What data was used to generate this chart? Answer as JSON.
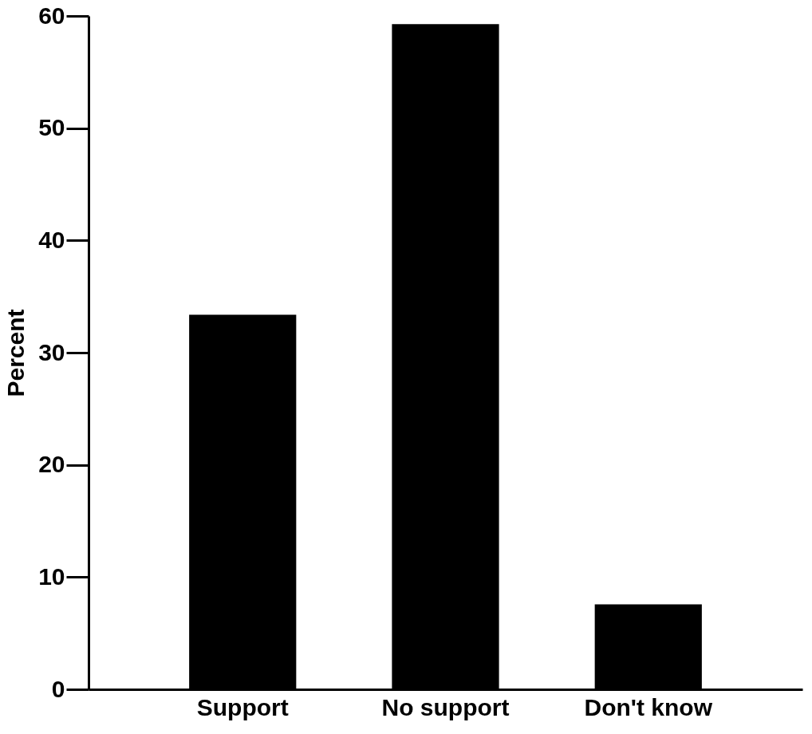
{
  "chart_data": {
    "type": "bar",
    "ylabel": "Percent",
    "categories": [
      "Support",
      "No support",
      "Don't know"
    ],
    "values": [
      33.3,
      59.2,
      7.5
    ],
    "color": "#000000",
    "ylim": [
      0,
      60
    ],
    "yticks": [
      0,
      10,
      20,
      30,
      40,
      50,
      60
    ],
    "grid": false
  }
}
